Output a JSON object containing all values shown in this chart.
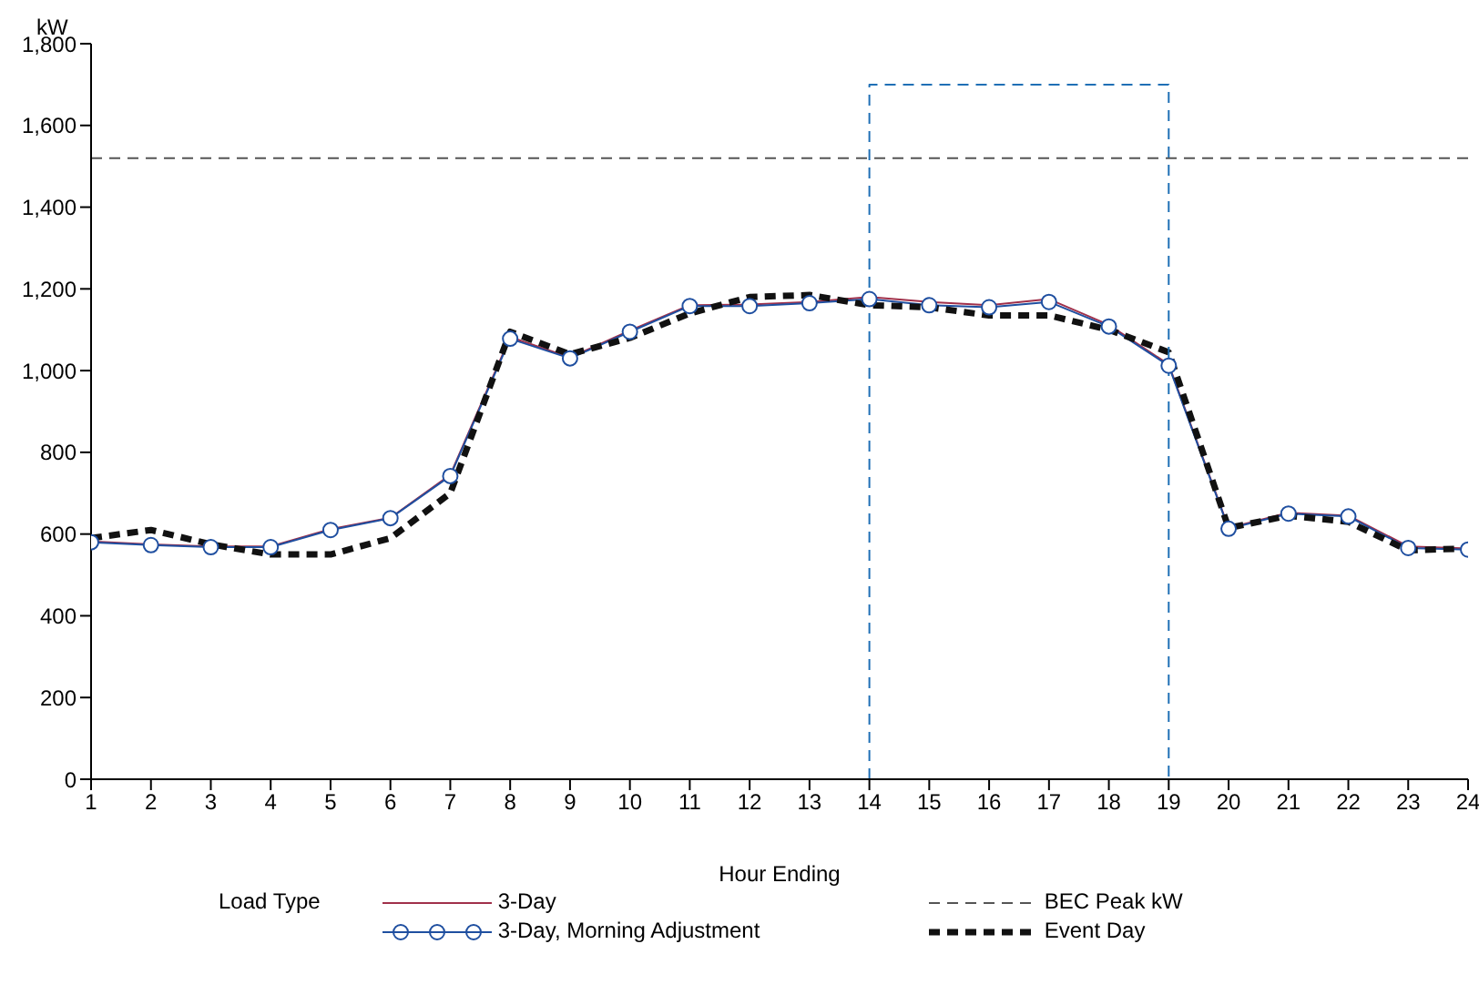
{
  "chart_data": {
    "type": "line",
    "ylabel": "kW",
    "xlabel": "Hour Ending",
    "legend_title": "Load Type",
    "legend": "bottom",
    "grid": false,
    "xlim": [
      1,
      24
    ],
    "xticks": [
      1,
      2,
      3,
      4,
      5,
      6,
      7,
      8,
      9,
      10,
      11,
      12,
      13,
      14,
      15,
      16,
      17,
      18,
      19,
      20,
      21,
      22,
      23,
      24
    ],
    "ylim": [
      0,
      1800
    ],
    "yticks": [
      0,
      200,
      400,
      600,
      800,
      {
        "value": 1000,
        "label": "1,000"
      },
      {
        "value": 1200,
        "label": "1,200"
      },
      {
        "value": 1400,
        "label": "1,400"
      },
      {
        "value": 1600,
        "label": "1,600"
      },
      {
        "value": 1800,
        "label": "1,800"
      }
    ],
    "x": [
      1,
      2,
      3,
      4,
      5,
      6,
      7,
      8,
      9,
      10,
      11,
      12,
      13,
      14,
      15,
      16,
      17,
      18,
      19,
      20,
      21,
      22,
      23,
      24
    ],
    "series": [
      {
        "name": "3-Day",
        "color": "#a0304a",
        "line_style": "solid",
        "marker": "none",
        "values": [
          582,
          575,
          570,
          570,
          612,
          640,
          745,
          1082,
          1032,
          1098,
          1160,
          1162,
          1168,
          1180,
          1168,
          1160,
          1175,
          1112,
          1015,
          615,
          652,
          645,
          570,
          565
        ]
      },
      {
        "name": "BEC Peak kW",
        "color": "#555555",
        "line_style": "dashed",
        "marker": "none",
        "x": [
          1,
          24
        ],
        "values": [
          1520,
          1520
        ]
      },
      {
        "name": "3-Day, Morning Adjustment",
        "color": "#1f4fa0",
        "line_style": "solid",
        "marker": "circle",
        "values": [
          580,
          573,
          568,
          568,
          610,
          639,
          742,
          1078,
          1030,
          1095,
          1158,
          1158,
          1165,
          1175,
          1160,
          1155,
          1168,
          1108,
          1012,
          613,
          650,
          643,
          566,
          562
        ]
      },
      {
        "name": "Event Day",
        "color": "#111111",
        "line_style": "dashed",
        "marker": "none",
        "values": [
          590,
          610,
          575,
          550,
          550,
          590,
          700,
          1095,
          1040,
          1080,
          1140,
          1180,
          1185,
          1160,
          1155,
          1135,
          1135,
          1100,
          1045,
          615,
          645,
          630,
          560,
          565
        ]
      },
      {
        "color": "#1f6fb5",
        "line_style": "dashed",
        "marker": "none",
        "x": [
          14,
          14,
          19,
          19
        ],
        "values": [
          0,
          1700,
          1700,
          0
        ]
      }
    ]
  }
}
